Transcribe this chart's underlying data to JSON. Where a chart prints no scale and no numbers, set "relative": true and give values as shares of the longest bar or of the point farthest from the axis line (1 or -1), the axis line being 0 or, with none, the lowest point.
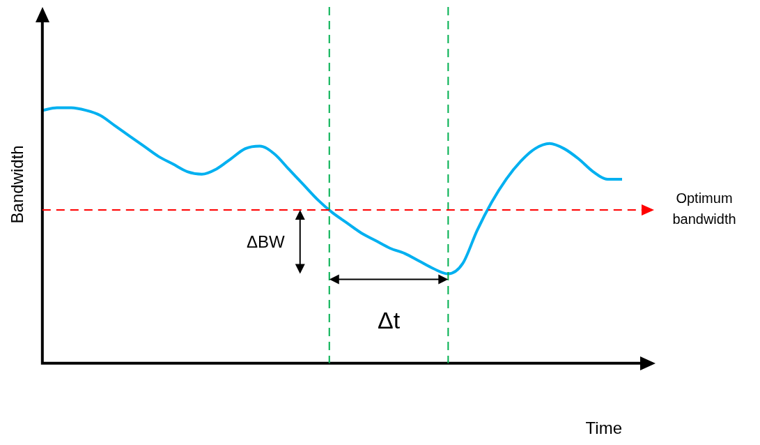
{
  "chart_data": {
    "type": "line",
    "relative": true,
    "xlabel": "Time",
    "ylabel": "Bandwidth",
    "categories": [
      null,
      null,
      null,
      null,
      null,
      null,
      null,
      null,
      null,
      null,
      null,
      null,
      null,
      null,
      null,
      null,
      null,
      null,
      null,
      null,
      null,
      null,
      null,
      null,
      null,
      null,
      null,
      null,
      null,
      null,
      null,
      null,
      null,
      null,
      null,
      null,
      null,
      null,
      null,
      null,
      null
    ],
    "series": [
      {
        "color": "#00b0f0",
        "values": [
          0.99,
          1,
          1,
          0.99,
          0.97,
          0.93,
          0.89,
          0.85,
          0.81,
          0.78,
          0.75,
          0.74,
          0.76,
          0.8,
          0.84,
          0.85,
          0.82,
          0.76,
          0.7,
          0.64,
          0.59,
          0.55,
          0.51,
          0.48,
          0.45,
          0.43,
          0.4,
          0.37,
          0.35,
          0.39,
          0.52,
          0.63,
          0.72,
          0.79,
          0.84,
          0.86,
          0.84,
          0.8,
          0.75,
          0.72,
          0.72
        ]
      }
    ],
    "ref_lines": [
      {
        "axis": "y",
        "value": 0.6,
        "label": "Optimum bandwidth",
        "color": "#ff0000",
        "line_style": "dashed"
      }
    ],
    "annotations": [
      "ΔBW",
      "Δt"
    ],
    "legend": false,
    "grid": false,
    "marker": "none",
    "line_style": "solid"
  }
}
